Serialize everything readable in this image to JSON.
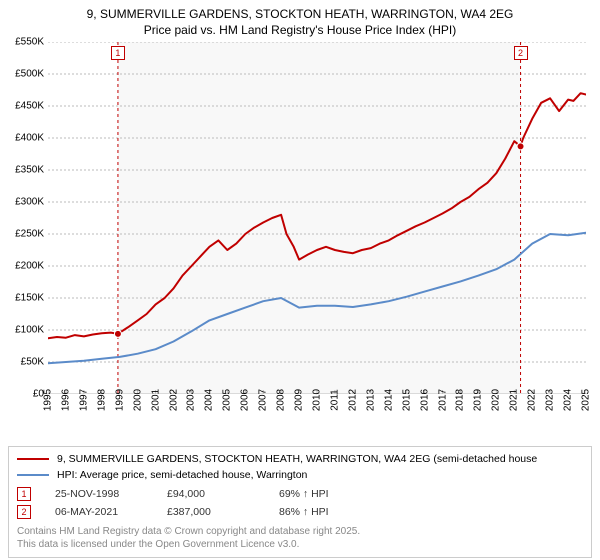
{
  "title_line1": "9, SUMMERVILLE GARDENS, STOCKTON HEATH, WARRINGTON, WA4 2EG",
  "title_line2": "Price paid vs. HM Land Registry's House Price Index (HPI)",
  "chart": {
    "type": "line",
    "background_color": "#ffffff",
    "plot_bg_shaded": "#f8f8f8",
    "grid_color": "#bbbbbb",
    "grid_dash": "2 2",
    "axis_color": "#bbbbbb",
    "title_fontsize": 12,
    "tick_fontsize": 10,
    "ylim": [
      0,
      550
    ],
    "yticks": [
      0,
      50,
      100,
      150,
      200,
      250,
      300,
      350,
      400,
      450,
      500,
      550
    ],
    "ytick_labels": [
      "£0",
      "£50K",
      "£100K",
      "£150K",
      "£200K",
      "£250K",
      "£300K",
      "£350K",
      "£400K",
      "£450K",
      "£500K",
      "£550K"
    ],
    "xlim": [
      1995,
      2025
    ],
    "xticks": [
      1995,
      1996,
      1997,
      1998,
      1999,
      2000,
      2001,
      2002,
      2003,
      2004,
      2005,
      2006,
      2007,
      2008,
      2009,
      2010,
      2011,
      2012,
      2013,
      2014,
      2015,
      2016,
      2017,
      2018,
      2019,
      2020,
      2021,
      2022,
      2023,
      2024,
      2025
    ],
    "series": [
      {
        "name": "price_paid",
        "label": "9, SUMMERVILLE GARDENS, STOCKTON HEATH, WARRINGTON, WA4 2EG (semi-detached house",
        "color": "#c00000",
        "width": 2,
        "x": [
          1995,
          1995.5,
          1996,
          1996.5,
          1997,
          1997.5,
          1998,
          1998.5,
          1998.9,
          1999.5,
          2000,
          2000.5,
          2001,
          2001.5,
          2002,
          2002.5,
          2003,
          2003.5,
          2004,
          2004.5,
          2005,
          2005.5,
          2006,
          2006.5,
          2007,
          2007.5,
          2008,
          2008.3,
          2008.7,
          2009,
          2009.5,
          2010,
          2010.5,
          2011,
          2011.5,
          2012,
          2012.5,
          2013,
          2013.5,
          2014,
          2014.5,
          2015,
          2015.5,
          2016,
          2016.5,
          2017,
          2017.5,
          2018,
          2018.5,
          2019,
          2019.5,
          2020,
          2020.5,
          2021,
          2021.35,
          2021.5,
          2022,
          2022.5,
          2023,
          2023.5,
          2024,
          2024.3,
          2024.7,
          2025
        ],
        "y": [
          87,
          89,
          88,
          92,
          90,
          93,
          95,
          96,
          94,
          105,
          115,
          125,
          140,
          150,
          165,
          185,
          200,
          215,
          230,
          240,
          225,
          235,
          250,
          260,
          268,
          275,
          280,
          250,
          230,
          210,
          218,
          225,
          230,
          225,
          222,
          220,
          225,
          228,
          235,
          240,
          248,
          255,
          262,
          268,
          275,
          282,
          290,
          300,
          308,
          320,
          330,
          345,
          368,
          395,
          387,
          400,
          430,
          455,
          462,
          442,
          460,
          458,
          470,
          468
        ]
      },
      {
        "name": "hpi",
        "label": "HPI: Average price, semi-detached house, Warrington",
        "color": "#5b8bc9",
        "width": 2,
        "x": [
          1995,
          1996,
          1997,
          1998,
          1999,
          2000,
          2001,
          2002,
          2003,
          2004,
          2005,
          2006,
          2007,
          2008,
          2009,
          2010,
          2011,
          2012,
          2013,
          2014,
          2015,
          2016,
          2017,
          2018,
          2019,
          2020,
          2021,
          2022,
          2023,
          2024,
          2025
        ],
        "y": [
          48,
          50,
          52,
          55,
          58,
          63,
          70,
          82,
          98,
          115,
          125,
          135,
          145,
          150,
          135,
          138,
          138,
          136,
          140,
          145,
          152,
          160,
          168,
          176,
          185,
          195,
          210,
          235,
          250,
          248,
          252
        ]
      }
    ],
    "markers": [
      {
        "id": "1",
        "x": 1998.9,
        "y": 94,
        "vline_color": "#c00000",
        "box_color": "#c00000"
      },
      {
        "id": "2",
        "x": 2021.35,
        "y": 387,
        "vline_color": "#c00000",
        "box_color": "#c00000"
      }
    ]
  },
  "legend": {
    "border_color": "#cccccc"
  },
  "marker_table": [
    {
      "id": "1",
      "date": "25-NOV-1998",
      "price": "£94,000",
      "hpi_diff": "69% ↑ HPI"
    },
    {
      "id": "2",
      "date": "06-MAY-2021",
      "price": "£387,000",
      "hpi_diff": "86% ↑ HPI"
    }
  ],
  "copyright_line1": "Contains HM Land Registry data © Crown copyright and database right 2025.",
  "copyright_line2": "This data is licensed under the Open Government Licence v3.0."
}
